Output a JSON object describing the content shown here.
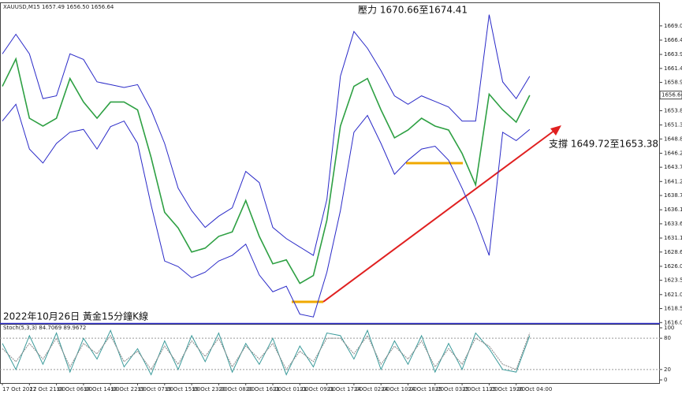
{
  "chart_data": [
    {
      "type": "line",
      "header": "XAUUSD,M15  1657.49 1656.50 1656.64",
      "annotations": [
        "壓力 1670.66至1674.41",
        "支撐 1649.72至1653.38",
        "2022年10月26日 黃金15分鐘K線"
      ],
      "current_price": 1656.64,
      "categories": [
        "17 Oct 2022",
        null,
        "17 Oct 21:00",
        null,
        "18 Oct 06:00",
        null,
        "18 Oct 14:00",
        null,
        "18 Oct 22:00",
        null,
        "19 Oct 07:00",
        null,
        "19 Oct 15:00",
        null,
        "19 Oct 23:00",
        null,
        "20 Oct 08:00",
        null,
        "20 Oct 16:00",
        null,
        "21 Oct 01:00",
        null,
        "21 Oct 09:00",
        null,
        "21 Oct 17:00",
        null,
        "24 Oct 02:00",
        null,
        "24 Oct 10:00",
        null,
        "24 Oct 18:00",
        null,
        "25 Oct 03:00",
        null,
        "25 Oct 11:00",
        null,
        "25 Oct 19:00",
        null,
        "26 Oct 04:00",
        null
      ],
      "series": [
        {
          "color": "#2ea043",
          "values": [
            1658.2,
            1663.1,
            1652.5,
            1651.1,
            1652.5,
            1659.6,
            1655.4,
            1652.5,
            1655.4,
            1655.4,
            1654.0,
            1645.5,
            1635.7,
            1632.9,
            1628.6,
            1629.3,
            1631.4,
            1632.2,
            1637.8,
            1631.4,
            1626.5,
            1627.2,
            1623.0,
            1624.4,
            1634.3,
            1651.1,
            1658.2,
            1659.6,
            1654.0,
            1649.0,
            1650.4,
            1652.5,
            1651.1,
            1650.4,
            1646.2,
            1640.6,
            1656.8,
            1654.0,
            1651.8,
            1656.6
          ]
        },
        {
          "color": "#2a2ac8",
          "values": [
            1664.0,
            1667.5,
            1664.0,
            1656.0,
            1656.5,
            1664.0,
            1663.0,
            1659.0,
            1658.5,
            1658.0,
            1658.5,
            1654.0,
            1648.0,
            1640.0,
            1636.0,
            1633.0,
            1635.0,
            1636.5,
            1643.0,
            1641.0,
            1633.0,
            1631.0,
            1629.5,
            1628.0,
            1638.0,
            1660.0,
            1668.0,
            1665.0,
            1661.0,
            1656.5,
            1655.0,
            1656.5,
            1655.5,
            1654.5,
            1652.0,
            1652.0,
            1671.0,
            1659.0,
            1656.0,
            1660.0
          ]
        },
        {
          "color": "#2a2ac8",
          "values": [
            1652.0,
            1655.0,
            1647.0,
            1644.5,
            1648.0,
            1650.0,
            1650.5,
            1647.0,
            1651.0,
            1652.0,
            1648.0,
            1637.0,
            1627.0,
            1626.0,
            1624.0,
            1625.0,
            1627.0,
            1628.0,
            1630.0,
            1624.5,
            1621.5,
            1622.5,
            1617.5,
            1617.0,
            1625.0,
            1636.0,
            1650.0,
            1653.0,
            1648.0,
            1642.5,
            1645.0,
            1647.0,
            1647.5,
            1645.0,
            1640.0,
            1634.5,
            1628.0,
            1650.0,
            1648.5,
            1650.5
          ]
        }
      ],
      "ylim": [
        1615.9,
        1673.2
      ],
      "yticks": [
        {
          "value": 1669,
          "label": "1669.00"
        },
        {
          "value": 1666.45,
          "label": "1666.45"
        },
        {
          "value": 1663.9,
          "label": "1663.90"
        },
        {
          "value": 1661.4,
          "label": "1661.40"
        },
        {
          "value": 1658.9,
          "label": "1658.90"
        },
        {
          "value": 1653.85,
          "label": "1653.85"
        },
        {
          "value": 1651.3,
          "label": "1651.30"
        },
        {
          "value": 1648.8,
          "label": "1648.80"
        },
        {
          "value": 1646.25,
          "label": "1646.25"
        },
        {
          "value": 1643.75,
          "label": "1643.75"
        },
        {
          "value": 1641.2,
          "label": "1641.20"
        },
        {
          "value": 1638.7,
          "label": "1638.70"
        },
        {
          "value": 1636.15,
          "label": "1636.15"
        },
        {
          "value": 1633.65,
          "label": "1633.65"
        },
        {
          "value": 1631.1,
          "label": "1631.10"
        },
        {
          "value": 1628.6,
          "label": "1628.60"
        },
        {
          "value": 1626.05,
          "label": "1626.05"
        },
        {
          "value": 1623.55,
          "label": "1623.55"
        },
        {
          "value": 1621,
          "label": "1621.00"
        },
        {
          "value": 1618.5,
          "label": "1618.50"
        },
        {
          "value": 1616,
          "label": "1616.00"
        }
      ]
    },
    {
      "type": "line",
      "header": "Stoch(5,3,3) 84.7069 89.9672",
      "series": [
        {
          "color": "#3a9a9a",
          "values": [
            70,
            20,
            85,
            30,
            90,
            15,
            80,
            40,
            95,
            25,
            60,
            10,
            75,
            20,
            85,
            35,
            90,
            15,
            70,
            30,
            80,
            10,
            65,
            25,
            90,
            85,
            40,
            95,
            20,
            75,
            30,
            85,
            15,
            70,
            20,
            90,
            60,
            20,
            15,
            85
          ]
        },
        {
          "color": "#888888",
          "values": [
            60,
            35,
            70,
            40,
            80,
            25,
            70,
            50,
            85,
            35,
            55,
            20,
            65,
            30,
            75,
            45,
            80,
            25,
            65,
            40,
            70,
            20,
            55,
            35,
            80,
            80,
            50,
            85,
            30,
            65,
            40,
            75,
            25,
            60,
            30,
            80,
            65,
            30,
            20,
            90
          ]
        }
      ],
      "ylim": [
        -6,
        107.5
      ],
      "yticks": [
        100,
        80,
        20,
        0
      ]
    }
  ]
}
